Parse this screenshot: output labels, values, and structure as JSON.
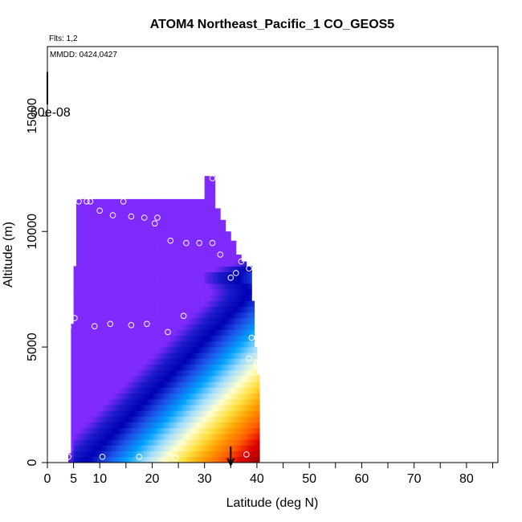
{
  "chart_data": {
    "type": "heatmap",
    "title": "ATOM4 Northeast_Pacific_1 CO_GEOS5",
    "subtitle_flights": "Flts: 1,2",
    "subtitle_dates": "MMDD: 0424,0427",
    "overlay_label": "50e-08",
    "xlabel": "Latitude (deg N)",
    "ylabel": "Altitude (m)",
    "xlim": [
      0,
      86
    ],
    "ylim": [
      0,
      18000
    ],
    "x_ticks": [
      0,
      5,
      10,
      20,
      30,
      40,
      50,
      60,
      70,
      80
    ],
    "y_ticks": [
      0,
      5000,
      10000,
      15000
    ],
    "colorscale": [
      "#7f2aff",
      "#1a1ac8",
      "#0000b4",
      "#1e50e6",
      "#00a0ff",
      "#a0dcff",
      "#ffffd0",
      "#ffe040",
      "#ffa000",
      "#ff6000",
      "#e00000",
      "#a00000"
    ],
    "curtain_columns": [
      {
        "x": 4,
        "top": 400
      },
      {
        "x": 4.5,
        "top": 6000
      },
      {
        "x": 5,
        "top": 8500
      },
      {
        "x": 5.5,
        "top": 11400
      },
      {
        "x": 30,
        "top": 12400
      },
      {
        "x": 31,
        "top": 12400
      },
      {
        "x": 32,
        "top": 11000
      },
      {
        "x": 33,
        "top": 10500
      },
      {
        "x": 34,
        "top": 10000
      },
      {
        "x": 35,
        "top": 9600
      },
      {
        "x": 36,
        "top": 9000
      },
      {
        "x": 37,
        "top": 8700
      },
      {
        "x": 38,
        "top": 8500
      },
      {
        "x": 39,
        "top": 7000
      },
      {
        "x": 39.5,
        "top": 5000
      },
      {
        "x": 40,
        "top": 3800
      },
      {
        "x": 40.5,
        "top": 0
      }
    ],
    "flight_points": [
      {
        "x": 4,
        "y": 250
      },
      {
        "x": 4,
        "y": 5850
      },
      {
        "x": 5.2,
        "y": 6250
      },
      {
        "x": 6,
        "y": 11300
      },
      {
        "x": 7.5,
        "y": 11300
      },
      {
        "x": 8.2,
        "y": 11300
      },
      {
        "x": 10,
        "y": 10900
      },
      {
        "x": 12.5,
        "y": 10700
      },
      {
        "x": 14.5,
        "y": 11300
      },
      {
        "x": 16,
        "y": 10650
      },
      {
        "x": 18.5,
        "y": 10600
      },
      {
        "x": 21,
        "y": 10600
      },
      {
        "x": 20.5,
        "y": 10350
      },
      {
        "x": 23.5,
        "y": 9600
      },
      {
        "x": 26.5,
        "y": 9500
      },
      {
        "x": 29,
        "y": 9500
      },
      {
        "x": 31.5,
        "y": 9500
      },
      {
        "x": 33,
        "y": 9000
      },
      {
        "x": 35,
        "y": 8000
      },
      {
        "x": 36,
        "y": 8200
      },
      {
        "x": 37,
        "y": 8700
      },
      {
        "x": 38.5,
        "y": 8400
      },
      {
        "x": 28.5,
        "y": 12300
      },
      {
        "x": 31.5,
        "y": 12300
      },
      {
        "x": 9,
        "y": 5900
      },
      {
        "x": 12,
        "y": 6000
      },
      {
        "x": 16,
        "y": 5950
      },
      {
        "x": 19,
        "y": 6000
      },
      {
        "x": 23,
        "y": 5650
      },
      {
        "x": 26,
        "y": 6350
      },
      {
        "x": 39,
        "y": 5400
      },
      {
        "x": 38.5,
        "y": 4500
      },
      {
        "x": 40,
        "y": 4300
      },
      {
        "x": 10.5,
        "y": 250
      },
      {
        "x": 17.5,
        "y": 250
      },
      {
        "x": 24.5,
        "y": 200
      },
      {
        "x": 38,
        "y": 350
      }
    ],
    "arrow_markers": [
      {
        "x": 0,
        "from": 16900,
        "to": 15500
      },
      {
        "x": 35,
        "from": 700,
        "to": -100
      }
    ]
  }
}
